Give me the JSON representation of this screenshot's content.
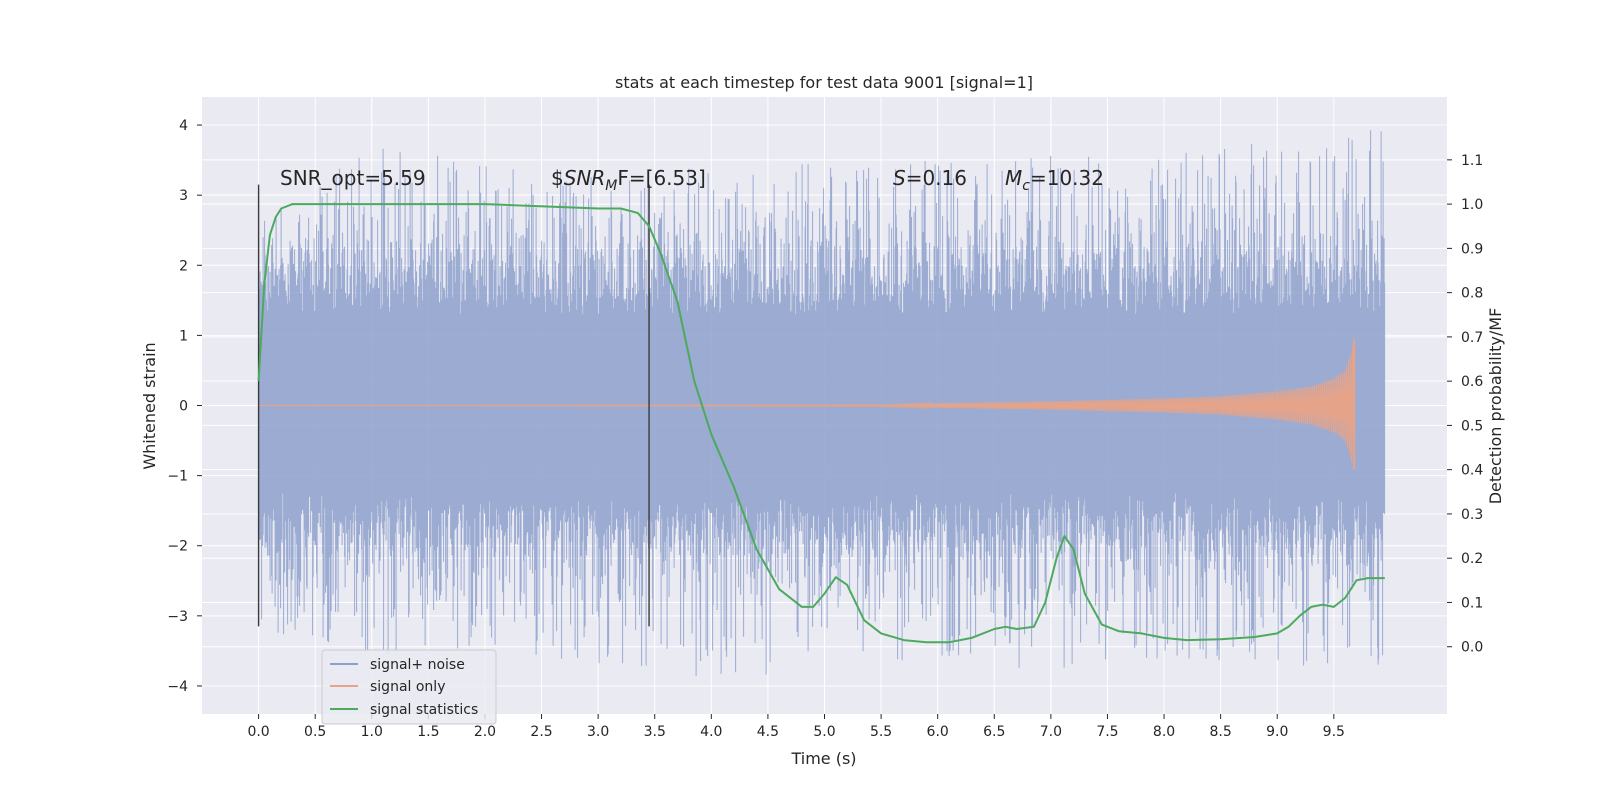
{
  "chart_data": {
    "type": "line",
    "title": "stats at each timestep for test data 9001 [signal=1]",
    "xlabel": "Time (s)",
    "ylabel": "Whitened strain",
    "y2label": "Detection probability/MF",
    "xlim": [
      -0.5,
      10.5
    ],
    "ylim": [
      -4.4,
      4.4
    ],
    "y2lim": [
      -0.152,
      1.242
    ],
    "x_ticks": [
      "0.0",
      "0.5",
      "1.0",
      "1.5",
      "2.0",
      "2.5",
      "3.0",
      "3.5",
      "4.0",
      "4.5",
      "5.0",
      "5.5",
      "6.0",
      "6.5",
      "7.0",
      "7.5",
      "8.0",
      "8.5",
      "9.0",
      "9.5"
    ],
    "y_ticks": [
      "4",
      "3",
      "2",
      "1",
      "0",
      "−1",
      "−2",
      "−3",
      "−4"
    ],
    "y2_ticks": [
      "1.1",
      "1.0",
      "0.9",
      "0.8",
      "0.7",
      "0.6",
      "0.5",
      "0.4",
      "0.3",
      "0.2",
      "0.1",
      "0.0"
    ],
    "grid": true,
    "legend_position": "lower-left",
    "annotations": {
      "snr_opt": "SNR_opt=5.59",
      "snr_mf_prefix": "$",
      "snr_mf_main": "SNR",
      "snr_mf_sub": "M",
      "snr_mf_suffix": "F=[6.53]",
      "s_var": "S",
      "s_val": "=0.16",
      "mc_var": "M",
      "mc_sub": "c",
      "mc_val": "=10.32"
    },
    "vertical_markers_x": [
      0.0,
      3.45
    ],
    "series": [
      {
        "name": "signal+ noise",
        "color": "#8da0cb",
        "x_range": [
          0.0,
          9.95
        ],
        "envelope": {
          "x": [
            0.0,
            1.0,
            2.0,
            3.0,
            4.0,
            5.0,
            6.0,
            7.0,
            8.0,
            9.0,
            9.95
          ],
          "upper": [
            2.6,
            3.7,
            3.5,
            3.3,
            3.4,
            3.5,
            3.5,
            3.6,
            3.6,
            3.9,
            4.0
          ],
          "lower": [
            -3.2,
            -3.6,
            -3.5,
            -3.7,
            -4.0,
            -3.7,
            -3.7,
            -3.8,
            -3.6,
            -3.7,
            -3.8
          ]
        }
      },
      {
        "name": "signal only",
        "color": "#e5a48a",
        "x_range": [
          0.0,
          9.68
        ],
        "amplitude": {
          "x": [
            0.0,
            5.5,
            6.0,
            7.0,
            8.0,
            8.5,
            9.0,
            9.3,
            9.5,
            9.6,
            9.65,
            9.68
          ],
          "a": [
            0.0,
            0.01,
            0.03,
            0.06,
            0.1,
            0.13,
            0.2,
            0.27,
            0.38,
            0.5,
            0.75,
            0.95
          ]
        }
      },
      {
        "name": "signal statistics",
        "color": "#4caa5e",
        "axis": "right",
        "x": [
          0.0,
          0.05,
          0.1,
          0.15,
          0.2,
          0.3,
          0.5,
          1.0,
          2.0,
          3.0,
          3.2,
          3.35,
          3.45,
          3.55,
          3.7,
          3.85,
          4.0,
          4.2,
          4.4,
          4.6,
          4.8,
          4.9,
          5.0,
          5.1,
          5.2,
          5.35,
          5.5,
          5.7,
          5.9,
          6.1,
          6.3,
          6.5,
          6.6,
          6.7,
          6.85,
          6.95,
          7.05,
          7.12,
          7.2,
          7.3,
          7.45,
          7.6,
          7.8,
          8.0,
          8.2,
          8.5,
          8.8,
          9.0,
          9.1,
          9.2,
          9.3,
          9.4,
          9.5,
          9.6,
          9.7,
          9.8,
          9.95
        ],
        "y": [
          0.6,
          0.82,
          0.93,
          0.97,
          0.99,
          1.0,
          1.0,
          1.0,
          1.0,
          0.99,
          0.99,
          0.98,
          0.95,
          0.89,
          0.78,
          0.6,
          0.48,
          0.36,
          0.22,
          0.13,
          0.09,
          0.09,
          0.12,
          0.157,
          0.14,
          0.06,
          0.03,
          0.015,
          0.01,
          0.01,
          0.02,
          0.04,
          0.045,
          0.04,
          0.045,
          0.1,
          0.2,
          0.25,
          0.22,
          0.12,
          0.05,
          0.035,
          0.03,
          0.02,
          0.015,
          0.017,
          0.022,
          0.03,
          0.045,
          0.07,
          0.09,
          0.095,
          0.09,
          0.11,
          0.15,
          0.155,
          0.155
        ]
      }
    ]
  }
}
